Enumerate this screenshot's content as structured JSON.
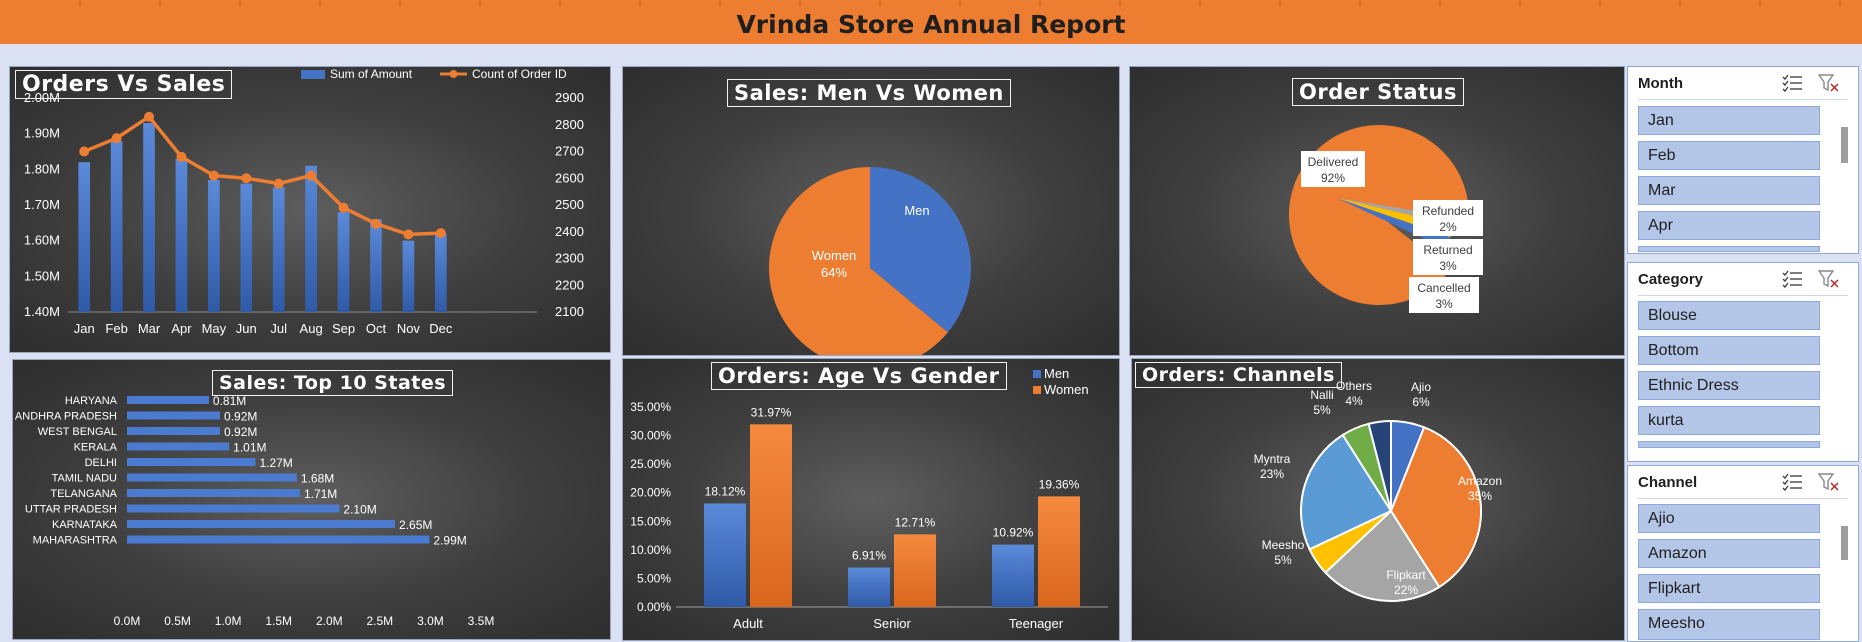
{
  "header": {
    "title": "Vrinda Store Annual Report"
  },
  "orders_vs_sales": {
    "title": "Orders Vs Sales",
    "legend": [
      "Sum of Amount",
      "Count of Order ID"
    ],
    "left_ticks": [
      "2.00M",
      "1.90M",
      "1.80M",
      "1.70M",
      "1.60M",
      "1.50M",
      "1.40M"
    ],
    "right_ticks": [
      "2900",
      "2800",
      "2700",
      "2600",
      "2500",
      "2400",
      "2300",
      "2200",
      "2100"
    ]
  },
  "men_women": {
    "title": "Sales: Men Vs Women",
    "labels": [
      "Men",
      "Women",
      "64%"
    ]
  },
  "order_status": {
    "title": "Order Status",
    "labels": [
      {
        "name": "Delivered",
        "pct": "92%"
      },
      {
        "name": "Refunded",
        "pct": "2%"
      },
      {
        "name": "Returned",
        "pct": "3%"
      },
      {
        "name": "Cancelled",
        "pct": "3%"
      }
    ]
  },
  "top_states": {
    "title": "Sales: Top 10 States"
  },
  "age_gender": {
    "title": "Orders: Age Vs Gender",
    "legend": [
      "Men",
      "Women"
    ]
  },
  "channels": {
    "title": "Orders: Channels"
  },
  "slicers": [
    {
      "title": "Month",
      "items": [
        "Jan",
        "Feb",
        "Mar",
        "Apr"
      ]
    },
    {
      "title": "Category",
      "items": [
        "Blouse",
        "Bottom",
        "Ethnic Dress",
        "kurta"
      ]
    },
    {
      "title": "Channel",
      "items": [
        "Ajio",
        "Amazon",
        "Flipkart",
        "Meesho"
      ]
    }
  ],
  "colors": {
    "blue": "#4472c4",
    "orange": "#ed7d31",
    "gray": "#a5a5a5",
    "yellow": "#ffc000",
    "lightblue": "#5b9bd5",
    "green": "#70ad47",
    "navy": "#264478"
  },
  "chart_data": [
    {
      "id": "orders_vs_sales",
      "type": "bar+line",
      "title": "Orders Vs Sales",
      "categories": [
        "Jan",
        "Feb",
        "Mar",
        "Apr",
        "May",
        "Jun",
        "Jul",
        "Aug",
        "Sep",
        "Oct",
        "Nov",
        "Dec"
      ],
      "series": [
        {
          "name": "Sum of Amount",
          "type": "bar",
          "axis": "left",
          "values": [
            1.82,
            1.88,
            1.93,
            1.83,
            1.77,
            1.76,
            1.75,
            1.81,
            1.68,
            1.66,
            1.6,
            1.62
          ]
        },
        {
          "name": "Count of Order ID",
          "type": "line",
          "axis": "right",
          "values": [
            2700,
            2750,
            2830,
            2680,
            2610,
            2600,
            2580,
            2610,
            2490,
            2430,
            2390,
            2395
          ]
        }
      ],
      "ylim_left": [
        1.4,
        2.0
      ],
      "ylim_right": [
        2100,
        2900
      ],
      "grid": false,
      "legend": "top-right"
    },
    {
      "id": "men_women",
      "type": "pie",
      "title": "Sales: Men Vs Women",
      "slices": [
        {
          "label": "Men",
          "value": 36
        },
        {
          "label": "Women",
          "value": 64
        }
      ]
    },
    {
      "id": "order_status",
      "type": "pie",
      "title": "Order Status",
      "slices": [
        {
          "label": "Delivered",
          "value": 92
        },
        {
          "label": "Refunded",
          "value": 2
        },
        {
          "label": "Returned",
          "value": 3
        },
        {
          "label": "Cancelled",
          "value": 3
        }
      ]
    },
    {
      "id": "top_states",
      "type": "bar",
      "orientation": "horizontal",
      "title": "Sales: Top 10 States",
      "categories": [
        "HARYANA",
        "ANDHRA PRADESH",
        "WEST BENGAL",
        "KERALA",
        "DELHI",
        "TAMIL NADU",
        "TELANGANA",
        "UTTAR PRADESH",
        "KARNATAKA",
        "MAHARASHTRA"
      ],
      "values": [
        0.81,
        0.92,
        0.92,
        1.01,
        1.27,
        1.68,
        1.71,
        2.1,
        2.65,
        2.99
      ],
      "value_labels": [
        "0.81M",
        "0.92M",
        "0.92M",
        "1.01M",
        "1.27M",
        "1.68M",
        "1.71M",
        "2.10M",
        "2.65M",
        "2.99M"
      ],
      "xticks": [
        "0.0M",
        "0.5M",
        "1.0M",
        "1.5M",
        "2.0M",
        "2.5M",
        "3.0M",
        "3.5M"
      ],
      "xlim": [
        0,
        3.5
      ]
    },
    {
      "id": "age_gender",
      "type": "bar",
      "title": "Orders: Age Vs Gender",
      "categories": [
        "Adult",
        "Senior",
        "Teenager"
      ],
      "series": [
        {
          "name": "Men",
          "values": [
            18.12,
            6.91,
            10.92
          ],
          "labels": [
            "18.12%",
            "6.91%",
            "10.92%"
          ]
        },
        {
          "name": "Women",
          "values": [
            31.97,
            12.71,
            19.36
          ],
          "labels": [
            "31.97%",
            "12.71%",
            "19.36%"
          ]
        }
      ],
      "yticks": [
        "35.00%",
        "30.00%",
        "25.00%",
        "20.00%",
        "15.00%",
        "10.00%",
        "5.00%",
        "0.00%"
      ],
      "ylim": [
        0,
        35
      ],
      "legend": "top-right"
    },
    {
      "id": "channels",
      "type": "pie",
      "title": "Orders: Channels",
      "slices": [
        {
          "label": "Ajio",
          "value": 6,
          "pct": "6%"
        },
        {
          "label": "Amazon",
          "value": 35,
          "pct": "35%"
        },
        {
          "label": "Flipkart",
          "value": 22,
          "pct": "22%"
        },
        {
          "label": "Meesho",
          "value": 5,
          "pct": "5%"
        },
        {
          "label": "Myntra",
          "value": 23,
          "pct": "23%"
        },
        {
          "label": "Nalli",
          "value": 5,
          "pct": "5%"
        },
        {
          "label": "Others",
          "value": 4,
          "pct": "4%"
        }
      ]
    }
  ]
}
